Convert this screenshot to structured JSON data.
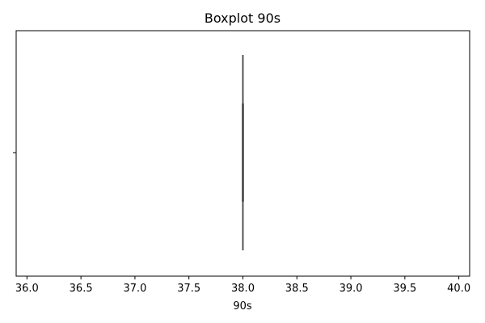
{
  "chart_data": {
    "type": "boxplot",
    "title": "Boxplot 90s",
    "xlabel": "90s",
    "ylabel": "",
    "orientation": "horizontal",
    "xlim": [
      35.9,
      40.1
    ],
    "x_ticks": [
      36.0,
      36.5,
      37.0,
      37.5,
      38.0,
      38.5,
      39.0,
      39.5,
      40.0
    ],
    "x_tick_labels": [
      "36.0",
      "36.5",
      "37.0",
      "37.5",
      "38.0",
      "38.5",
      "39.0",
      "39.5",
      "40.0"
    ],
    "grid": false,
    "series": [
      {
        "min": 38.0,
        "q1": 38.0,
        "median": 38.0,
        "q3": 38.0,
        "max": 38.0
      }
    ],
    "colors": {
      "box_line": "#3f3f3f",
      "axes": "#000000"
    }
  }
}
